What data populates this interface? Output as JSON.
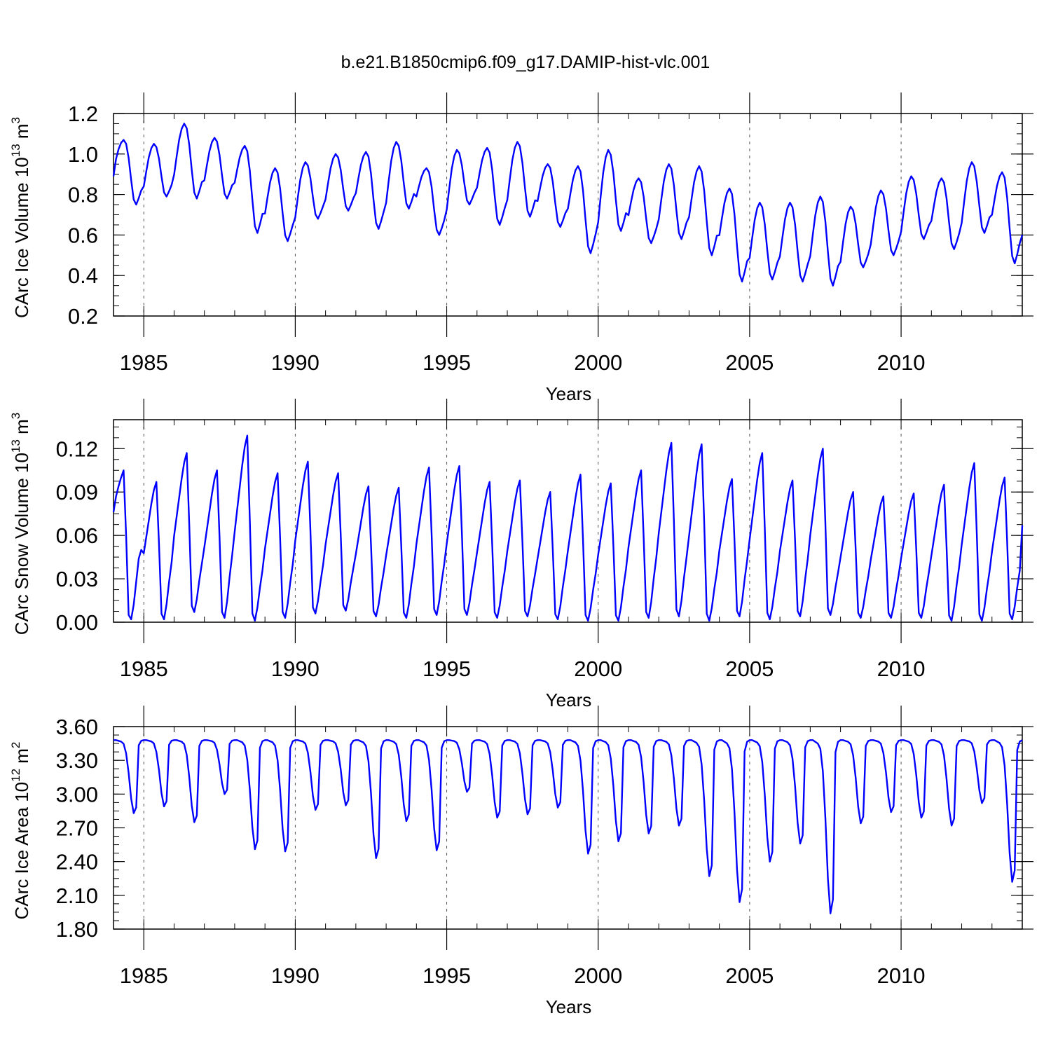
{
  "figure": {
    "title": "b.e21.B1850cmip6.f09_g17.DAMIP-hist-vlc.001"
  },
  "chart_data": [
    {
      "type": "line",
      "name": "ice-volume",
      "ylabel": "CArc Ice Volume 10",
      "ylabel_exp": "13",
      "ylabel_unit": " m",
      "ylabel_unit_exp": "3",
      "xlabel": "Years",
      "xlim": [
        1984.0,
        2014.0
      ],
      "xticks": [
        1985,
        1990,
        1995,
        2000,
        2005,
        2010
      ],
      "ylim": [
        0.2,
        1.2
      ],
      "yticks": [
        0.2,
        0.4,
        0.6,
        0.8,
        1.0,
        1.2
      ],
      "ytick_labels": [
        "0.2",
        "0.4",
        "0.6",
        "0.8",
        "1.0",
        "1.2"
      ],
      "series": [
        {
          "name": "CArc Ice Volume",
          "color": "#0000ff",
          "annual_max": [
            1.07,
            1.05,
            1.15,
            1.08,
            1.04,
            0.93,
            0.96,
            1.0,
            1.01,
            1.06,
            0.93,
            1.02,
            1.03,
            1.06,
            0.95,
            0.94,
            1.02,
            0.88,
            0.95,
            0.94,
            0.83,
            0.76,
            0.76,
            0.79,
            0.74,
            0.82,
            0.89,
            0.88,
            0.96,
            0.91
          ],
          "annual_min": [
            0.75,
            0.79,
            0.78,
            0.78,
            0.61,
            0.57,
            0.68,
            0.72,
            0.63,
            0.73,
            0.6,
            0.75,
            0.65,
            0.69,
            0.64,
            0.51,
            0.62,
            0.56,
            0.58,
            0.5,
            0.37,
            0.38,
            0.37,
            0.35,
            0.44,
            0.5,
            0.58,
            0.53,
            0.61,
            0.46
          ],
          "end_value": 0.6
        }
      ]
    },
    {
      "type": "line",
      "name": "snow-volume",
      "ylabel": "CArc Snow Volume 10",
      "ylabel_exp": "13",
      "ylabel_unit": " m",
      "ylabel_unit_exp": "3",
      "xlabel": "Years",
      "xlim": [
        1984.0,
        2014.0
      ],
      "xticks": [
        1985,
        1990,
        1995,
        2000,
        2005,
        2010
      ],
      "ylim": [
        0.0,
        0.14
      ],
      "yticks": [
        0.0,
        0.03,
        0.06,
        0.09,
        0.12
      ],
      "ytick_labels": [
        "0.00",
        "0.03",
        "0.06",
        "0.09",
        "0.12"
      ],
      "series": [
        {
          "name": "CArc Snow Volume",
          "color": "#0000ff",
          "start_value": 0.076,
          "annual_max": [
            0.105,
            0.097,
            0.117,
            0.105,
            0.129,
            0.103,
            0.111,
            0.103,
            0.094,
            0.093,
            0.107,
            0.108,
            0.097,
            0.098,
            0.09,
            0.102,
            0.096,
            0.105,
            0.124,
            0.123,
            0.099,
            0.117,
            0.098,
            0.12,
            0.09,
            0.087,
            0.089,
            0.095,
            0.11,
            0.1
          ],
          "annual_min": [
            0.002,
            0.002,
            0.007,
            0.003,
            0.001,
            0.003,
            0.006,
            0.008,
            0.004,
            0.003,
            0.005,
            0.005,
            0.003,
            0.004,
            0.002,
            0.001,
            0.001,
            0.003,
            0.004,
            0.001,
            0.004,
            0.002,
            0.004,
            0.005,
            0.003,
            0.003,
            0.003,
            0.001,
            0.001,
            0.002
          ],
          "end_value": 0.067
        }
      ]
    },
    {
      "type": "line",
      "name": "ice-area",
      "ylabel": "CArc Ice Area 10",
      "ylabel_exp": "12",
      "ylabel_unit": " m",
      "ylabel_unit_exp": "2",
      "xlabel": "Years",
      "xlim": [
        1984.0,
        2014.0
      ],
      "xticks": [
        1985,
        1990,
        1995,
        2000,
        2005,
        2010
      ],
      "ylim": [
        1.8,
        3.6
      ],
      "yticks": [
        1.8,
        2.1,
        2.4,
        2.7,
        3.0,
        3.3,
        3.6
      ],
      "ytick_labels": [
        "1.80",
        "2.10",
        "2.40",
        "2.70",
        "3.00",
        "3.30",
        "3.60"
      ],
      "series": [
        {
          "name": "CArc Ice Area",
          "color": "#0000ff",
          "max_value": 3.48,
          "annual_min": [
            2.83,
            2.89,
            2.75,
            3.0,
            2.51,
            2.49,
            2.86,
            2.9,
            2.43,
            2.76,
            2.5,
            3.02,
            2.79,
            2.82,
            2.88,
            2.47,
            2.58,
            2.65,
            2.72,
            2.27,
            2.04,
            2.4,
            2.56,
            1.94,
            2.74,
            2.84,
            2.79,
            2.72,
            2.92,
            2.22
          ]
        }
      ]
    }
  ]
}
